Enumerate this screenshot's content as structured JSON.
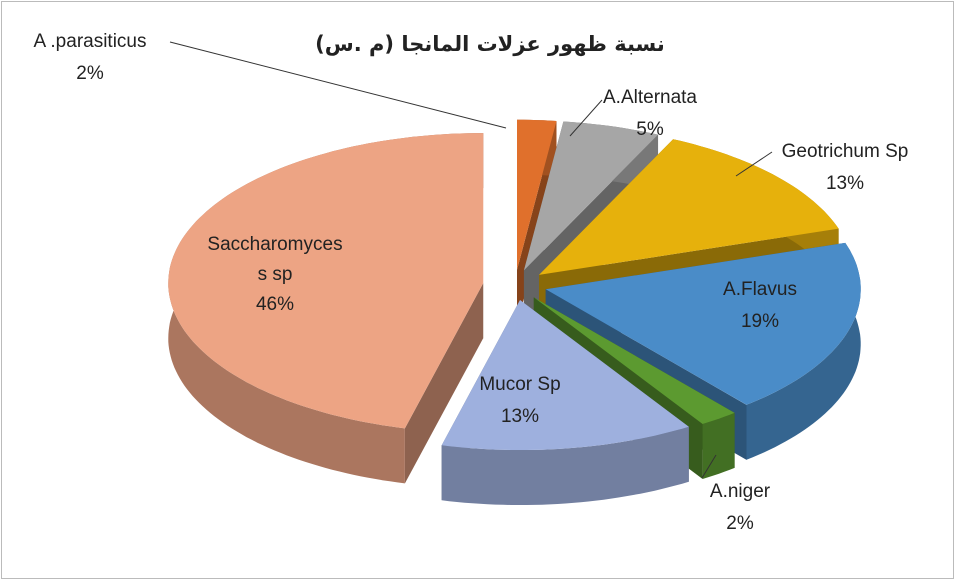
{
  "chart_data": {
    "type": "pie3d",
    "title": "نسبة ظهور عزلات المانجا (م .س)",
    "categories": [
      "A .parasiticus",
      "A.Alternata",
      "Geotrichum Sp",
      "A.Flavus",
      "A.niger",
      "Mucor Sp",
      "Saccharomyces s sp"
    ],
    "values": [
      2,
      5,
      13,
      19,
      2,
      13,
      46
    ],
    "value_labels": [
      "2%",
      "5%",
      "13%",
      "19%",
      "2%",
      "13%",
      "46%"
    ],
    "colors": [
      "#e0702c",
      "#a6a6a6",
      "#e6b10c",
      "#4a8cc8",
      "#5c9a30",
      "#9eb0de",
      "#eda484"
    ]
  }
}
